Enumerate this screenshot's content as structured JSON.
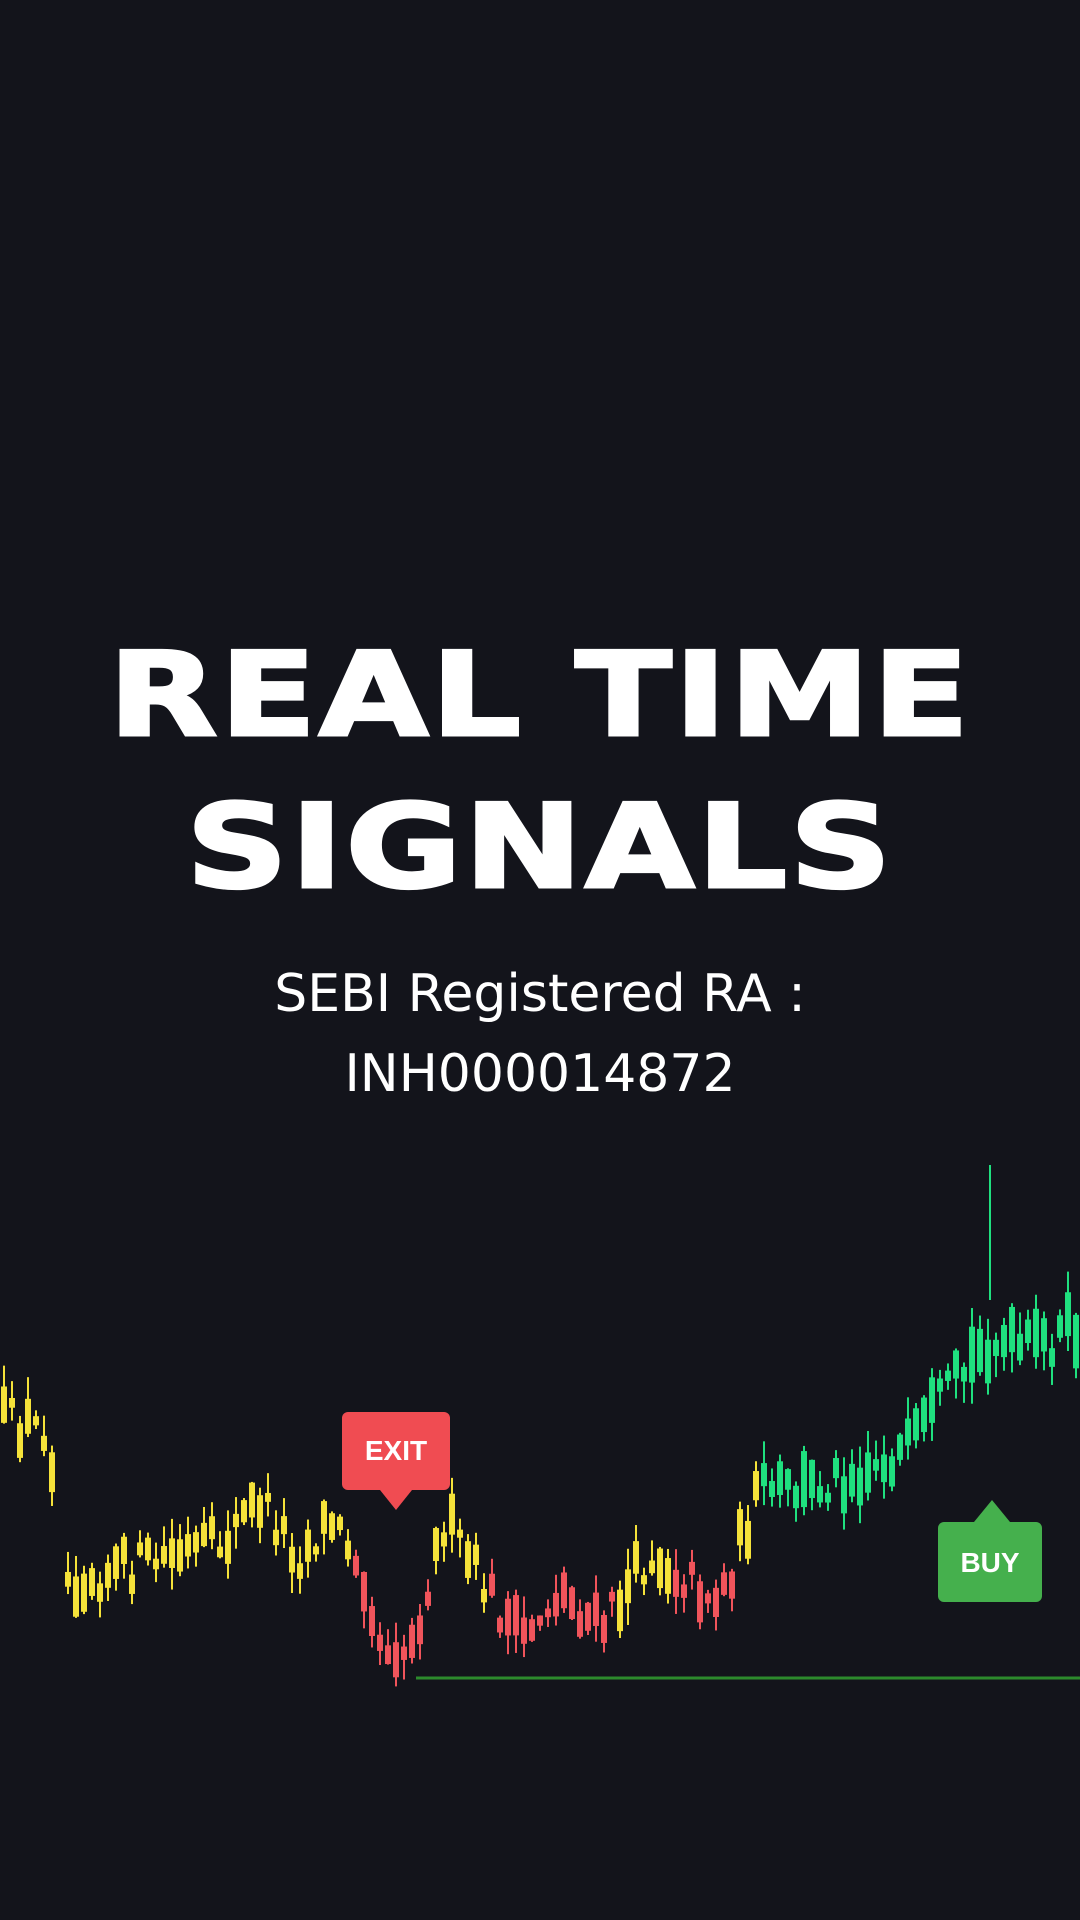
{
  "headline": {
    "line1": "REAL TIME",
    "line2": "SIGNALS"
  },
  "registration": {
    "line1": "SEBI Registered RA :",
    "line2": "INH000014872"
  },
  "signals": {
    "exit_label": "EXIT",
    "buy_label": "BUY"
  },
  "colors": {
    "background": "#13141b",
    "neutral_candle": "#f5e23a",
    "down_candle": "#f0545b",
    "up_candle": "#1fe07f",
    "exit_badge": "#f04c52",
    "buy_badge": "#45b04d",
    "support_line": "#2c8a2c"
  }
}
